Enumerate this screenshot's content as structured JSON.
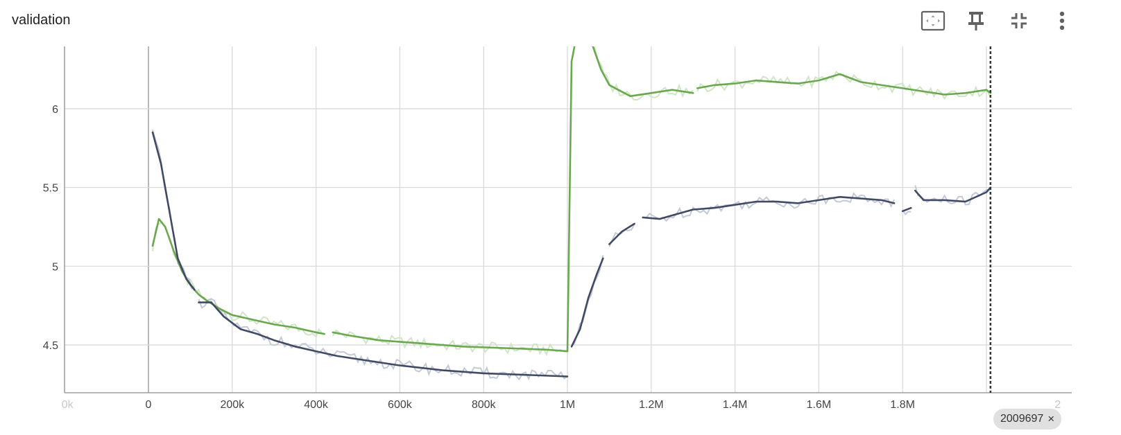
{
  "card": {
    "title": "validation"
  },
  "toolbar": {
    "icons": [
      "fit-domain-icon",
      "pin-icon",
      "collapse-icon",
      "more-vert-icon"
    ]
  },
  "hover": {
    "step_label": "2009697",
    "close_glyph": "×",
    "step_value": 2009697
  },
  "axis": {
    "x_ticks": [
      "0",
      "200k",
      "400k",
      "600k",
      "800k",
      "1M",
      "1.2M",
      "1.4M",
      "1.6M",
      "1.8M"
    ],
    "x_ticks_faint": [
      "0k",
      "2"
    ],
    "y_ticks": [
      "4.5",
      "5",
      "5.5",
      "6"
    ]
  },
  "colors": {
    "green": "#6aa84f",
    "green_raw": "#cfe6c3",
    "navy": "#404a63",
    "navy_raw": "#c3c9d6",
    "grid": "#d7d7d7",
    "axis": "#9e9e9e"
  },
  "chart_data": {
    "type": "line",
    "title": "validation",
    "xlim": [
      -200000,
      2200000
    ],
    "ylim": [
      4.3,
      6.4
    ],
    "grid": true,
    "series": [
      {
        "color": "#6aa84f",
        "segments": [
          [
            [
              10000,
              5.13
            ],
            [
              25000,
              5.3
            ],
            [
              40000,
              5.25
            ],
            [
              60000,
              5.1
            ],
            [
              80000,
              4.97
            ],
            [
              100000,
              4.88
            ],
            [
              120000,
              4.82
            ],
            [
              140000,
              4.78
            ],
            [
              170000,
              4.73
            ],
            [
              200000,
              4.69
            ],
            [
              250000,
              4.66
            ],
            [
              300000,
              4.63
            ],
            [
              350000,
              4.61
            ],
            [
              400000,
              4.58
            ],
            [
              420000,
              4.57
            ]
          ],
          [
            [
              440000,
              4.58
            ],
            [
              480000,
              4.56
            ],
            [
              550000,
              4.53
            ],
            [
              650000,
              4.51
            ],
            [
              750000,
              4.49
            ],
            [
              850000,
              4.48
            ],
            [
              950000,
              4.47
            ],
            [
              1000000,
              4.46
            ]
          ],
          [
            [
              1000000,
              4.46
            ],
            [
              1010000,
              6.3
            ],
            [
              1020000,
              6.55
            ]
          ],
          [
            [
              1055000,
              6.5
            ],
            [
              1080000,
              6.25
            ],
            [
              1100000,
              6.15
            ],
            [
              1150000,
              6.08
            ],
            [
              1200000,
              6.1
            ],
            [
              1250000,
              6.12
            ],
            [
              1300000,
              6.1
            ]
          ],
          [
            [
              1310000,
              6.13
            ],
            [
              1350000,
              6.15
            ],
            [
              1400000,
              6.16
            ],
            [
              1450000,
              6.18
            ],
            [
              1500000,
              6.17
            ],
            [
              1550000,
              6.16
            ],
            [
              1600000,
              6.18
            ],
            [
              1650000,
              6.22
            ],
            [
              1700000,
              6.17
            ],
            [
              1750000,
              6.15
            ],
            [
              1800000,
              6.13
            ],
            [
              1850000,
              6.11
            ],
            [
              1900000,
              6.09
            ],
            [
              1950000,
              6.1
            ],
            [
              2000000,
              6.12
            ],
            [
              2009697,
              6.1
            ]
          ]
        ]
      },
      {
        "color": "#404a63",
        "segments": [
          [
            [
              10000,
              5.85
            ],
            [
              30000,
              5.65
            ],
            [
              50000,
              5.35
            ],
            [
              70000,
              5.05
            ],
            [
              90000,
              4.92
            ],
            [
              110000,
              4.85
            ]
          ],
          [
            [
              120000,
              4.77
            ],
            [
              150000,
              4.77
            ],
            [
              180000,
              4.68
            ],
            [
              220000,
              4.6
            ],
            [
              260000,
              4.57
            ],
            [
              300000,
              4.53
            ],
            [
              350000,
              4.49
            ],
            [
              400000,
              4.46
            ],
            [
              450000,
              4.43
            ],
            [
              500000,
              4.41
            ],
            [
              600000,
              4.37
            ],
            [
              700000,
              4.34
            ],
            [
              800000,
              4.32
            ],
            [
              900000,
              4.31
            ],
            [
              1000000,
              4.3
            ]
          ],
          [
            [
              1010000,
              4.49
            ],
            [
              1030000,
              4.6
            ],
            [
              1050000,
              4.8
            ],
            [
              1070000,
              4.95
            ],
            [
              1085000,
              5.05
            ]
          ],
          [
            [
              1100000,
              5.14
            ],
            [
              1130000,
              5.22
            ],
            [
              1160000,
              5.27
            ]
          ],
          [
            [
              1180000,
              5.31
            ],
            [
              1220000,
              5.3
            ],
            [
              1260000,
              5.33
            ],
            [
              1300000,
              5.36
            ],
            [
              1350000,
              5.37
            ],
            [
              1400000,
              5.39
            ],
            [
              1450000,
              5.41
            ],
            [
              1500000,
              5.41
            ],
            [
              1550000,
              5.4
            ],
            [
              1600000,
              5.42
            ],
            [
              1650000,
              5.44
            ],
            [
              1700000,
              5.43
            ],
            [
              1750000,
              5.42
            ],
            [
              1780000,
              5.4
            ]
          ],
          [
            [
              1800000,
              5.35
            ],
            [
              1820000,
              5.37
            ]
          ],
          [
            [
              1830000,
              5.48
            ],
            [
              1850000,
              5.42
            ],
            [
              1900000,
              5.42
            ],
            [
              1950000,
              5.41
            ],
            [
              2000000,
              5.47
            ],
            [
              2009697,
              5.5
            ]
          ]
        ]
      }
    ]
  }
}
